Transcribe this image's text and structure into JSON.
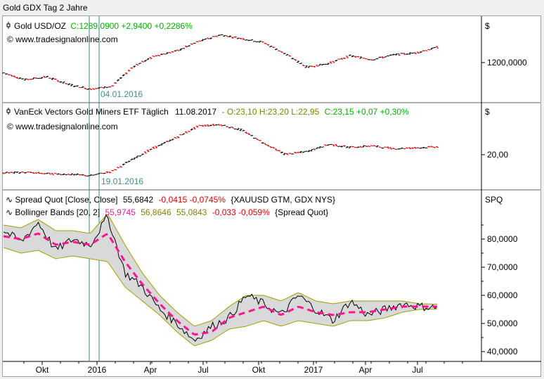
{
  "window": {
    "title": "Gold GDX Tag 2 Jahre"
  },
  "colors": {
    "up": "#00b000",
    "down": "#e00000",
    "text": "#000000",
    "olive": "#808000",
    "magenta": "#ff1493",
    "band_fill": "#d9d9d9",
    "band_line": "#a0a000",
    "marker_line": "#2e8b8b",
    "date_text": "#4a8a8a",
    "grid": "#000000"
  },
  "panel1": {
    "icon": "bar-chart-icon",
    "title_prefix": "Gold USD/OZ",
    "title_values": "C:1289,0900 +2,9400 +0,2286%",
    "watermark": "© www.tradesignalonline.com",
    "unit": "$",
    "marker_label": "04.01.2016"
  },
  "panel2": {
    "icon": "bar-chart-icon",
    "title_prefix": "VanEck Vectors Gold Miners ETF Täglich",
    "title_date": "11.08.2017",
    "title_ohl": "- O:23,10 H:23,20 L:22,95",
    "title_close": "C:23,15 +0,07 +0,30%",
    "watermark": "© www.tradesignalonline.com",
    "unit": "$",
    "marker_label": "19.01.2016"
  },
  "panel3": {
    "unit": "SPQ",
    "line1_name": "Spread Quot [Close, Close]",
    "line1_value": "55,6842",
    "line1_change": "-0,0415 -0,0745%",
    "line1_src": "{XAUUSD GTM, GDX NYS}",
    "line2_name": "Bollinger Bands [20, 2]",
    "line2_mid": "55,9745",
    "line2_upper": "56,8646",
    "line2_lower": "55,0843",
    "line2_change": "-0,033 -0,059%",
    "line2_src": "{Spread Quot}"
  },
  "chart_data": [
    {
      "type": "bar",
      "name": "Gold USD/OZ",
      "yticks": [
        "1200,0000"
      ],
      "x": [
        0,
        0.05,
        0.1,
        0.15,
        0.2,
        0.25,
        0.3,
        0.35,
        0.4,
        0.45,
        0.5,
        0.55,
        0.6,
        0.65,
        0.7,
        0.75,
        0.8,
        0.85,
        0.9,
        0.95,
        1
      ],
      "values": [
        1155,
        1120,
        1135,
        1095,
        1070,
        1085,
        1190,
        1245,
        1270,
        1320,
        1355,
        1335,
        1315,
        1255,
        1185,
        1205,
        1245,
        1225,
        1250,
        1260,
        1289.09
      ]
    },
    {
      "type": "bar",
      "name": "VanEck Vectors Gold Miners ETF",
      "yticks": [
        "20,00"
      ],
      "x": [
        0,
        0.05,
        0.1,
        0.15,
        0.2,
        0.25,
        0.3,
        0.35,
        0.4,
        0.45,
        0.5,
        0.55,
        0.6,
        0.65,
        0.7,
        0.75,
        0.8,
        0.85,
        0.9,
        0.95,
        1
      ],
      "values": [
        14.0,
        14.2,
        13.7,
        13.5,
        13.0,
        14.5,
        19.0,
        23.0,
        26.5,
        30.5,
        31.0,
        29.0,
        24.5,
        20.5,
        21.5,
        24.0,
        23.0,
        23.5,
        22.5,
        22.8,
        23.15
      ]
    },
    {
      "type": "line",
      "name": "Spread Quot",
      "yticks": [
        "40,0000",
        "50,0000",
        "60,0000",
        "70,0000",
        "80,0000"
      ],
      "ylim": [
        37,
        90
      ],
      "xticks": [
        "Okt",
        "2016",
        "Apr",
        "Jul",
        "Okt",
        "2017",
        "Apr",
        "Jul"
      ],
      "x": [
        0,
        0.04,
        0.08,
        0.12,
        0.16,
        0.2,
        0.24,
        0.28,
        0.32,
        0.36,
        0.4,
        0.44,
        0.48,
        0.52,
        0.56,
        0.6,
        0.64,
        0.68,
        0.72,
        0.76,
        0.8,
        0.84,
        0.88,
        0.92,
        0.96,
        1
      ],
      "values": [
        83,
        79,
        86,
        76,
        80,
        78,
        88,
        68,
        63,
        55,
        50,
        44,
        49,
        52,
        60,
        57,
        53,
        60,
        55,
        51,
        58,
        53,
        55,
        57,
        56,
        55.68
      ],
      "bb_mid": [
        81,
        80,
        82,
        78,
        79,
        78,
        82,
        72,
        64,
        57,
        51,
        46,
        47,
        52,
        54,
        56,
        53,
        56,
        54,
        53,
        54,
        54,
        55,
        56,
        56,
        55.97
      ],
      "bb_upper": [
        85,
        84,
        87,
        83,
        83,
        82,
        89,
        78,
        68,
        60,
        54,
        49,
        51,
        56,
        60,
        60,
        58,
        61,
        58,
        57,
        58,
        58,
        58,
        58,
        57,
        56.86
      ],
      "bb_lower": [
        77,
        75,
        76,
        73,
        74,
        73,
        72,
        63,
        58,
        53,
        47,
        42,
        44,
        48,
        49,
        51,
        49,
        51,
        50,
        49,
        51,
        51,
        52,
        54,
        55,
        55.08
      ]
    }
  ]
}
